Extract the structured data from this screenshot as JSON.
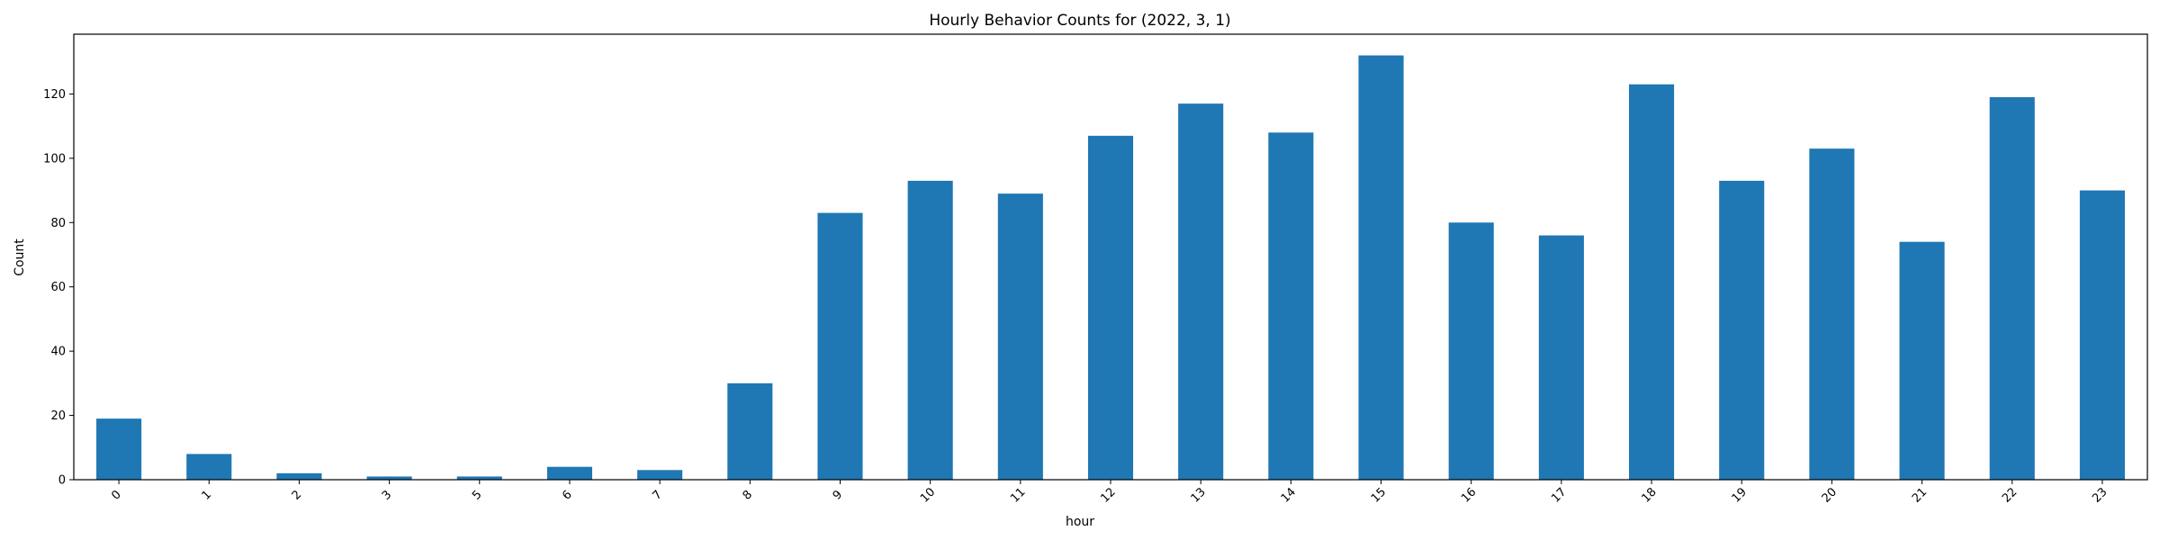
{
  "chart_data": {
    "type": "bar",
    "title": "Hourly Behavior Counts for (2022, 3, 1)",
    "xlabel": "hour",
    "ylabel": "Count",
    "categories": [
      "0",
      "1",
      "2",
      "3",
      "5",
      "6",
      "7",
      "8",
      "9",
      "10",
      "11",
      "12",
      "13",
      "14",
      "15",
      "16",
      "17",
      "18",
      "19",
      "20",
      "21",
      "22",
      "23"
    ],
    "values": [
      19,
      8,
      2,
      1,
      1,
      4,
      3,
      30,
      83,
      93,
      89,
      107,
      117,
      108,
      132,
      80,
      76,
      123,
      93,
      103,
      74,
      119,
      90
    ],
    "ylim": [
      0,
      138.6
    ],
    "yticks": [
      0,
      20,
      40,
      60,
      80,
      100,
      120
    ],
    "grid": false,
    "legend": "none",
    "bar_color": "#1f77b4"
  }
}
